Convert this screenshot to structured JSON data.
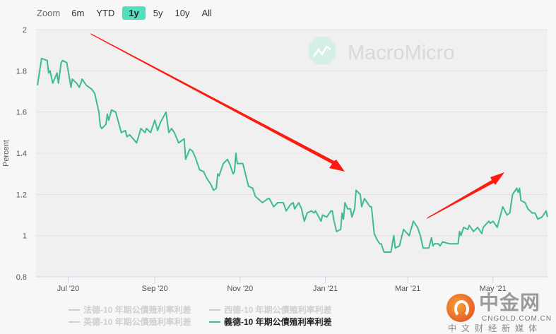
{
  "range_selector": {
    "label": "Zoom",
    "buttons": [
      "6m",
      "YTD",
      "1y",
      "5y",
      "10y",
      "All"
    ],
    "selected": "1y",
    "selected_color": "#4fe0c0"
  },
  "watermark": {
    "text": "MacroMicro"
  },
  "overlay_logo": {
    "name": "中金网",
    "domain": "CNGOLD.COM.CN",
    "tagline": "中文财经新媒体"
  },
  "annotations": [
    {
      "type": "arrow",
      "color": "#ff1a0f",
      "direction": "down-right"
    },
    {
      "type": "arrow",
      "color": "#ff1a0f",
      "direction": "up-right"
    }
  ],
  "legend": [
    {
      "label": "法德-10 年期公債殖利率利差",
      "active": false
    },
    {
      "label": "西德-10 年期公債殖利率利差",
      "active": false
    },
    {
      "label": "義德-10 年期公債殖利率利差",
      "active": true
    },
    {
      "label": "英德-10 年期公債殖利率利差",
      "active": false
    }
  ],
  "chart_data": {
    "type": "line",
    "title": "",
    "xlabel": "",
    "ylabel": "Percent",
    "ylim": [
      0.8,
      2
    ],
    "xlim": [
      "2020-06-08",
      "2021-06-09"
    ],
    "grid": true,
    "legend_position": "bottom",
    "y_ticks": [
      {
        "value": 0.8,
        "label": "0.8"
      },
      {
        "value": 1,
        "label": "1"
      },
      {
        "value": 1.2,
        "label": "1.2"
      },
      {
        "value": 1.4,
        "label": "1.4"
      },
      {
        "value": 1.6,
        "label": "1.6"
      },
      {
        "value": 1.8,
        "label": "1.8"
      },
      {
        "value": 2,
        "label": "2"
      }
    ],
    "x_ticks": [
      {
        "date": "2020-07-01",
        "label": "Jul '20"
      },
      {
        "date": "2020-09-01",
        "label": "Sep '20"
      },
      {
        "date": "2020-11-01",
        "label": "Nov '20"
      },
      {
        "date": "2021-01-01",
        "label": "Jan '21"
      },
      {
        "date": "2021-03-01",
        "label": "Mar '21"
      },
      {
        "date": "2021-05-01",
        "label": "May '21"
      }
    ],
    "series": [
      {
        "name": "義德-10 年期公債殖利率利差",
        "color": "#3dbb95",
        "points": [
          [
            "2020-06-09",
            1.73
          ],
          [
            "2020-06-12",
            1.86
          ],
          [
            "2020-06-16",
            1.85
          ],
          [
            "2020-06-17",
            1.79
          ],
          [
            "2020-06-18",
            1.8
          ],
          [
            "2020-06-20",
            1.74
          ],
          [
            "2020-06-23",
            1.79
          ],
          [
            "2020-06-24",
            1.74
          ],
          [
            "2020-06-26",
            1.84
          ],
          [
            "2020-06-27",
            1.85
          ],
          [
            "2020-06-30",
            1.84
          ],
          [
            "2020-07-03",
            1.72
          ],
          [
            "2020-07-04",
            1.76
          ],
          [
            "2020-07-07",
            1.74
          ],
          [
            "2020-07-09",
            1.72
          ],
          [
            "2020-07-11",
            1.76
          ],
          [
            "2020-07-14",
            1.73
          ],
          [
            "2020-07-16",
            1.72
          ],
          [
            "2020-07-18",
            1.71
          ],
          [
            "2020-07-20",
            1.69
          ],
          [
            "2020-07-22",
            1.63
          ],
          [
            "2020-07-23",
            1.6
          ],
          [
            "2020-07-24",
            1.53
          ],
          [
            "2020-07-25",
            1.52
          ],
          [
            "2020-07-28",
            1.54
          ],
          [
            "2020-07-29",
            1.59
          ],
          [
            "2020-07-30",
            1.56
          ],
          [
            "2020-08-01",
            1.61
          ],
          [
            "2020-08-04",
            1.6
          ],
          [
            "2020-08-06",
            1.55
          ],
          [
            "2020-08-08",
            1.5
          ],
          [
            "2020-08-11",
            1.51
          ],
          [
            "2020-08-12",
            1.48
          ],
          [
            "2020-08-14",
            1.49
          ],
          [
            "2020-08-19",
            1.45
          ],
          [
            "2020-08-22",
            1.52
          ],
          [
            "2020-08-25",
            1.5
          ],
          [
            "2020-08-26",
            1.52
          ],
          [
            "2020-08-29",
            1.5
          ],
          [
            "2020-09-01",
            1.56
          ],
          [
            "2020-09-03",
            1.51
          ],
          [
            "2020-09-05",
            1.55
          ],
          [
            "2020-09-09",
            1.6
          ],
          [
            "2020-09-11",
            1.5
          ],
          [
            "2020-09-13",
            1.52
          ],
          [
            "2020-09-15",
            1.5
          ],
          [
            "2020-09-18",
            1.45
          ],
          [
            "2020-09-22",
            1.47
          ],
          [
            "2020-09-23",
            1.37
          ],
          [
            "2020-09-26",
            1.42
          ],
          [
            "2020-09-28",
            1.41
          ],
          [
            "2020-09-30",
            1.38
          ],
          [
            "2020-10-03",
            1.32
          ],
          [
            "2020-10-06",
            1.31
          ],
          [
            "2020-10-08",
            1.28
          ],
          [
            "2020-10-11",
            1.25
          ],
          [
            "2020-10-13",
            1.22
          ],
          [
            "2020-10-15",
            1.23
          ],
          [
            "2020-10-16",
            1.3
          ],
          [
            "2020-10-17",
            1.29
          ],
          [
            "2020-10-20",
            1.35
          ],
          [
            "2020-10-23",
            1.37
          ],
          [
            "2020-10-25",
            1.34
          ],
          [
            "2020-10-27",
            1.3
          ],
          [
            "2020-10-28",
            1.31
          ],
          [
            "2020-10-29",
            1.4
          ],
          [
            "2020-10-30",
            1.35
          ],
          [
            "2020-11-03",
            1.35
          ],
          [
            "2020-11-07",
            1.24
          ],
          [
            "2020-11-10",
            1.23
          ],
          [
            "2020-11-12",
            1.19
          ],
          [
            "2020-11-17",
            1.16
          ],
          [
            "2020-11-21",
            1.18
          ],
          [
            "2020-11-22",
            1.18
          ],
          [
            "2020-11-25",
            1.14
          ],
          [
            "2020-11-28",
            1.16
          ],
          [
            "2020-12-02",
            1.16
          ],
          [
            "2020-12-04",
            1.12
          ],
          [
            "2020-12-07",
            1.15
          ],
          [
            "2020-12-09",
            1.16
          ],
          [
            "2020-12-10",
            1.13
          ],
          [
            "2020-12-13",
            1.16
          ],
          [
            "2020-12-15",
            1.13
          ],
          [
            "2020-12-17",
            1.07
          ],
          [
            "2020-12-19",
            1.11
          ],
          [
            "2020-12-22",
            1.12
          ],
          [
            "2020-12-24",
            1.11
          ],
          [
            "2020-12-25",
            1.12
          ],
          [
            "2020-12-29",
            1.07
          ],
          [
            "2020-12-30",
            1.1
          ],
          [
            "2021-01-02",
            1.09
          ],
          [
            "2021-01-05",
            1.12
          ],
          [
            "2021-01-06",
            1.12
          ],
          [
            "2021-01-07",
            1.08
          ],
          [
            "2021-01-09",
            1.02
          ],
          [
            "2021-01-12",
            1.03
          ],
          [
            "2021-01-13",
            1.11
          ],
          [
            "2021-01-14",
            1.08
          ],
          [
            "2021-01-15",
            1.16
          ],
          [
            "2021-01-17",
            1.13
          ],
          [
            "2021-01-19",
            1.13
          ],
          [
            "2021-01-20",
            1.09
          ],
          [
            "2021-01-22",
            1.13
          ],
          [
            "2021-01-23",
            1.22
          ],
          [
            "2021-01-26",
            1.2
          ],
          [
            "2021-01-27",
            1.14
          ],
          [
            "2021-01-29",
            1.18
          ],
          [
            "2021-02-02",
            1.14
          ],
          [
            "2021-02-03",
            1.14
          ],
          [
            "2021-02-05",
            1.01
          ],
          [
            "2021-02-07",
            0.98
          ],
          [
            "2021-02-09",
            0.96
          ],
          [
            "2021-02-10",
            0.96
          ],
          [
            "2021-02-12",
            0.92
          ],
          [
            "2021-02-14",
            0.92
          ],
          [
            "2021-02-17",
            0.92
          ],
          [
            "2021-02-19",
            1.0
          ],
          [
            "2021-02-20",
            0.94
          ],
          [
            "2021-02-23",
            0.95
          ],
          [
            "2021-02-26",
            1.03
          ],
          [
            "2021-03-02",
            1.0
          ],
          [
            "2021-03-05",
            1.07
          ],
          [
            "2021-03-08",
            1.04
          ],
          [
            "2021-03-10",
            1.0
          ],
          [
            "2021-03-12",
            0.94
          ],
          [
            "2021-03-16",
            0.94
          ],
          [
            "2021-03-18",
            0.99
          ],
          [
            "2021-03-19",
            0.95
          ],
          [
            "2021-03-20",
            0.96
          ],
          [
            "2021-03-23",
            0.96
          ],
          [
            "2021-03-24",
            0.95
          ],
          [
            "2021-03-26",
            0.97
          ],
          [
            "2021-03-31",
            0.96
          ],
          [
            "2021-04-01",
            0.96
          ],
          [
            "2021-04-06",
            0.96
          ],
          [
            "2021-04-07",
            1.02
          ],
          [
            "2021-04-08",
            1.0
          ],
          [
            "2021-04-10",
            1.04
          ],
          [
            "2021-04-13",
            1.03
          ],
          [
            "2021-04-14",
            1.05
          ],
          [
            "2021-04-17",
            1.02
          ],
          [
            "2021-04-20",
            1.04
          ],
          [
            "2021-04-23",
            1.01
          ],
          [
            "2021-04-24",
            1.04
          ],
          [
            "2021-04-28",
            1.07
          ],
          [
            "2021-04-29",
            1.06
          ],
          [
            "2021-05-01",
            1.07
          ],
          [
            "2021-05-04",
            1.04
          ],
          [
            "2021-05-08",
            1.14
          ],
          [
            "2021-05-11",
            1.1
          ],
          [
            "2021-05-13",
            1.11
          ],
          [
            "2021-05-15",
            1.2
          ],
          [
            "2021-05-18",
            1.23
          ],
          [
            "2021-05-19",
            1.21
          ],
          [
            "2021-05-20",
            1.23
          ],
          [
            "2021-05-21",
            1.17
          ],
          [
            "2021-05-24",
            1.16
          ],
          [
            "2021-05-26",
            1.13
          ],
          [
            "2021-05-29",
            1.11
          ],
          [
            "2021-05-31",
            1.11
          ],
          [
            "2021-06-02",
            1.08
          ],
          [
            "2021-06-05",
            1.09
          ],
          [
            "2021-06-08",
            1.12
          ],
          [
            "2021-06-09",
            1.09
          ]
        ]
      }
    ]
  }
}
